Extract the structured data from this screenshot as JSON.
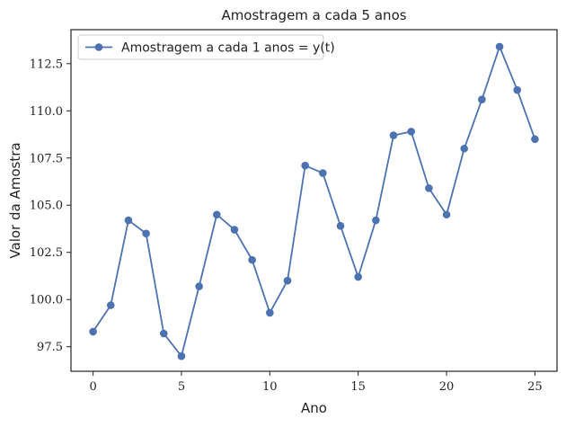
{
  "chart_data": {
    "type": "line",
    "title": "Amostragem a cada 5 anos",
    "xlabel": "Ano",
    "ylabel": "Valor da Amostra",
    "xlim": [
      -1.25,
      26.25
    ],
    "ylim": [
      96.2,
      114.3
    ],
    "xticks": [
      0,
      5,
      10,
      15,
      20,
      25
    ],
    "xtick_labels": [
      "0",
      "5",
      "10",
      "15",
      "20",
      "25"
    ],
    "yticks": [
      97.5,
      100.0,
      102.5,
      105.0,
      107.5,
      110.0,
      112.5
    ],
    "ytick_labels": [
      "97.5",
      "100.0",
      "102.5",
      "105.0",
      "107.5",
      "110.0",
      "112.5"
    ],
    "grid": false,
    "legend_position": "top-left",
    "series": [
      {
        "name": "Amostragem a cada 1 anos = y(t)",
        "color": "#4c72b0",
        "marker": "circle",
        "x": [
          0,
          1,
          2,
          3,
          4,
          5,
          6,
          7,
          8,
          9,
          10,
          11,
          12,
          13,
          14,
          15,
          16,
          17,
          18,
          19,
          20,
          21,
          22,
          23,
          24,
          25
        ],
        "values": [
          98.3,
          99.7,
          104.2,
          103.5,
          98.2,
          97.0,
          100.7,
          104.5,
          103.7,
          102.1,
          99.3,
          101.0,
          107.1,
          106.7,
          103.9,
          101.2,
          104.2,
          108.7,
          108.9,
          105.9,
          104.5,
          108.0,
          110.6,
          113.4,
          111.1,
          108.5
        ]
      }
    ]
  }
}
